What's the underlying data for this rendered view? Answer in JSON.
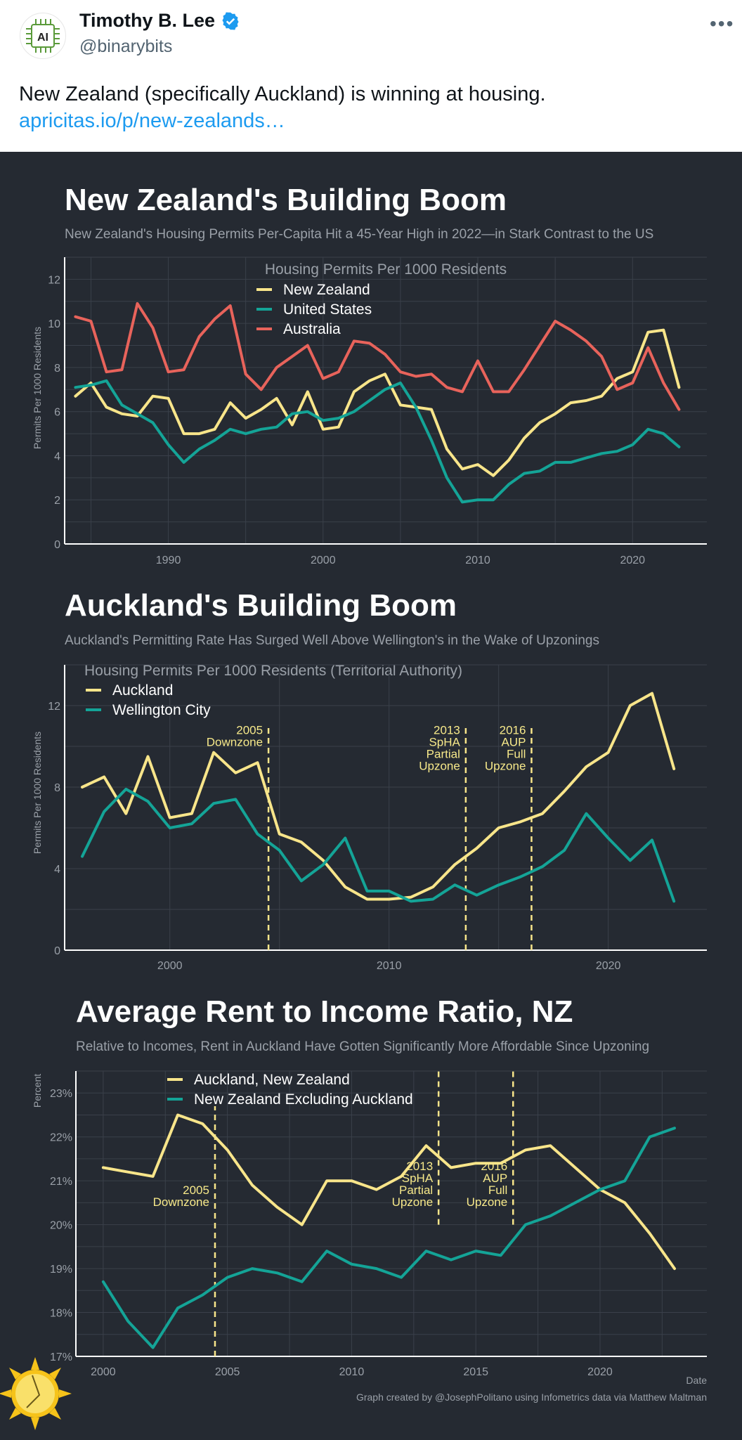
{
  "tweet": {
    "name": "Timothy B. Lee",
    "handle": "@binarybits",
    "text": "New Zealand (specifically Auckland) is winning at housing.",
    "link": "apricitas.io/p/new-zealands…",
    "avatar_label": "AI",
    "more_icon": "more-icon"
  },
  "colors": {
    "yellow": "#f8e58a",
    "teal": "#14a497",
    "red": "#e8635b",
    "bg": "#252a32",
    "grid": "#3a404a",
    "verified": "#1d9bf0"
  },
  "chart_data": [
    {
      "type": "line",
      "title": "New Zealand's Building Boom",
      "subtitle": "New Zealand's Housing Permits Per-Capita Hit a 45-Year High in 2022—in Stark Contrast to the US",
      "legend_title": "Housing Permits Per 1000 Residents",
      "ylabel": "Permits Per 1000 Residents",
      "xlabel": "",
      "xlim": [
        1983.3,
        2024.8
      ],
      "ylim": [
        0,
        13
      ],
      "xticks": [
        1990,
        2000,
        2010,
        2020
      ],
      "yticks": [
        0,
        2,
        4,
        6,
        8,
        10,
        12
      ],
      "grid": true,
      "legend": "top-center",
      "x": [
        1984,
        1985,
        1986,
        1987,
        1988,
        1989,
        1990,
        1991,
        1992,
        1993,
        1994,
        1995,
        1996,
        1997,
        1998,
        1999,
        2000,
        2001,
        2002,
        2003,
        2004,
        2005,
        2006,
        2007,
        2008,
        2009,
        2010,
        2011,
        2012,
        2013,
        2014,
        2015,
        2016,
        2017,
        2018,
        2019,
        2020,
        2021,
        2022,
        2023
      ],
      "series": [
        {
          "name": "New Zealand",
          "color": "#f8e58a",
          "values": [
            6.7,
            7.3,
            6.2,
            5.9,
            5.8,
            6.7,
            6.6,
            5.0,
            5.0,
            5.2,
            6.4,
            5.7,
            6.1,
            6.6,
            5.4,
            6.9,
            5.2,
            5.3,
            6.9,
            7.4,
            7.7,
            6.3,
            6.2,
            6.1,
            4.3,
            3.4,
            3.6,
            3.1,
            3.8,
            4.8,
            5.5,
            5.9,
            6.4,
            6.5,
            6.7,
            7.5,
            7.8,
            9.6,
            9.7,
            7.1
          ]
        },
        {
          "name": "United States",
          "color": "#14a497",
          "values": [
            7.1,
            7.2,
            7.4,
            6.3,
            5.9,
            5.5,
            4.5,
            3.7,
            4.3,
            4.7,
            5.2,
            5.0,
            5.2,
            5.3,
            5.9,
            6.0,
            5.6,
            5.7,
            6.0,
            6.5,
            7.0,
            7.3,
            6.2,
            4.7,
            3.0,
            1.9,
            2.0,
            2.0,
            2.7,
            3.2,
            3.3,
            3.7,
            3.7,
            3.9,
            4.1,
            4.2,
            4.5,
            5.2,
            5.0,
            4.4
          ]
        },
        {
          "name": "Australia",
          "color": "#e8635b",
          "values": [
            10.3,
            10.1,
            7.8,
            7.9,
            10.9,
            9.8,
            7.8,
            7.9,
            9.4,
            10.2,
            10.8,
            7.7,
            7.0,
            8.0,
            8.5,
            9.0,
            7.5,
            7.8,
            9.2,
            9.1,
            8.6,
            7.8,
            7.6,
            7.7,
            7.1,
            6.9,
            8.3,
            6.9,
            6.9,
            7.9,
            9.0,
            10.1,
            9.7,
            9.2,
            8.5,
            7.0,
            7.3,
            8.9,
            7.3,
            6.1
          ]
        }
      ]
    },
    {
      "type": "line",
      "title": "Auckland's Building Boom",
      "subtitle": "Auckland's Permitting Rate Has Surged Well Above Wellington's in the Wake of Upzonings",
      "legend_title": "Housing Permits Per 1000 Residents (Territorial Authority)",
      "ylabel": "Permits Per 1000 Residents",
      "xlabel": "",
      "xlim": [
        1995.2,
        2024.5
      ],
      "ylim": [
        0,
        14
      ],
      "xticks": [
        2000,
        2010,
        2020
      ],
      "yticks": [
        0,
        4,
        8,
        12
      ],
      "grid": true,
      "legend": "top-left",
      "x": [
        1996,
        1997,
        1998,
        1999,
        2000,
        2001,
        2002,
        2003,
        2004,
        2005,
        2006,
        2007,
        2008,
        2009,
        2010,
        2011,
        2012,
        2013,
        2014,
        2015,
        2016,
        2017,
        2018,
        2019,
        2020,
        2021,
        2022,
        2023
      ],
      "series": [
        {
          "name": "Auckland",
          "color": "#f8e58a",
          "values": [
            8.0,
            8.5,
            6.7,
            9.5,
            6.5,
            6.7,
            9.7,
            8.7,
            9.2,
            5.7,
            5.3,
            4.4,
            3.1,
            2.5,
            2.5,
            2.6,
            3.1,
            4.2,
            5.0,
            6.0,
            6.3,
            6.7,
            7.8,
            9.0,
            9.7,
            12.0,
            12.6,
            8.9
          ]
        },
        {
          "name": "Wellington City",
          "color": "#14a497",
          "values": [
            4.6,
            6.8,
            7.9,
            7.3,
            6.0,
            6.2,
            7.2,
            7.4,
            5.7,
            4.9,
            3.4,
            4.2,
            5.5,
            2.9,
            2.9,
            2.4,
            2.5,
            3.2,
            2.7,
            3.2,
            3.6,
            4.1,
            4.9,
            6.7,
            5.5,
            4.4,
            5.4,
            2.4
          ]
        }
      ],
      "annotations": [
        {
          "x": 2004.5,
          "text": [
            "2005",
            "Downzone"
          ],
          "align": "end"
        },
        {
          "x": 2013.5,
          "text": [
            "2013",
            "SpHA",
            "Partial",
            "Upzone"
          ],
          "align": "end"
        },
        {
          "x": 2016.5,
          "text": [
            "2016",
            "AUP",
            "Full",
            "Upzone"
          ],
          "align": "end"
        }
      ]
    },
    {
      "type": "line",
      "title": "Average Rent to Income Ratio, NZ",
      "subtitle": "Relative to Incomes, Rent in Auckland Have Gotten Significantly More Affordable Since Upzoning",
      "ylabel": "Percent",
      "xlabel": "Date",
      "xlim": [
        1998.9,
        2024.3
      ],
      "ylim": [
        17,
        23.5
      ],
      "xticks": [
        2000,
        2005,
        2010,
        2015,
        2020
      ],
      "yticks": [
        17,
        18,
        19,
        20,
        21,
        22,
        23
      ],
      "yticklabels": [
        "17%",
        "18%",
        "19%",
        "20%",
        "21%",
        "22%",
        "23%"
      ],
      "grid": true,
      "legend": "top-center",
      "x": [
        2000,
        2001,
        2002,
        2003,
        2004,
        2005,
        2006,
        2007,
        2008,
        2009,
        2010,
        2011,
        2012,
        2013,
        2014,
        2015,
        2016,
        2017,
        2018,
        2019,
        2020,
        2021,
        2022,
        2023
      ],
      "series": [
        {
          "name": "Auckland, New Zealand",
          "color": "#f8e58a",
          "values": [
            21.3,
            21.2,
            21.1,
            22.5,
            22.3,
            21.7,
            20.9,
            20.4,
            20.0,
            21.0,
            21.0,
            20.8,
            21.1,
            21.8,
            21.3,
            21.4,
            21.4,
            21.7,
            21.8,
            21.3,
            20.8,
            20.5,
            19.8,
            19.0
          ]
        },
        {
          "name": "New Zealand Excluding Auckland",
          "color": "#14a497",
          "values": [
            18.7,
            17.8,
            17.2,
            18.1,
            18.4,
            18.8,
            19.0,
            18.9,
            18.7,
            19.4,
            19.1,
            19.0,
            18.8,
            19.4,
            19.2,
            19.4,
            19.3,
            20.0,
            20.2,
            20.5,
            20.8,
            21.0,
            22.0,
            22.2
          ]
        }
      ],
      "annotations": [
        {
          "x": 2004.5,
          "text": [
            "2005",
            "Downzone"
          ],
          "align": "end"
        },
        {
          "x": 2013.5,
          "text": [
            "2013",
            "SpHA",
            "Partial",
            "Upzone"
          ],
          "align": "end"
        },
        {
          "x": 2016.5,
          "text": [
            "2016",
            "AUP",
            "Full",
            "Upzone"
          ],
          "align": "end"
        }
      ],
      "credit": "Graph created by @JosephPolitano using Infometrics data via Matthew Maltman"
    }
  ]
}
